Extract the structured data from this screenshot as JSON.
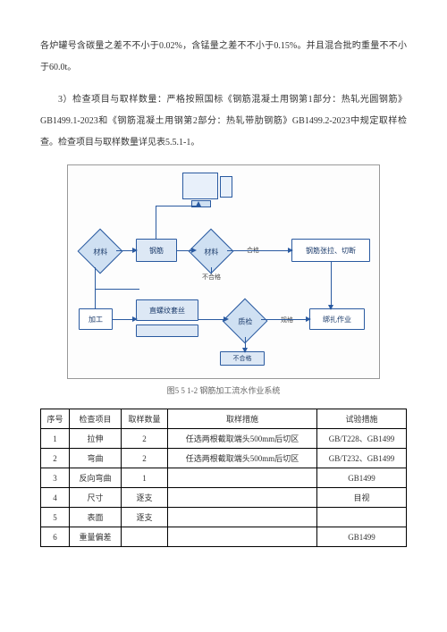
{
  "paragraphs": {
    "p1": "各炉罐号含碳量之差不不小于0.02%，含锰量之差不不小于0.15%。并且混合批旳重量不不小于60.0t。",
    "p2": "3）检查项目与取样数量：严格按照国标《钢筋混凝土用钢第1部分：热轧光圆钢筋》GB1499.1-2023和《钢筋混凝土用钢第2部分：热轧带肋钢筋》GB1499.2-2023中规定取样检查。检查项目与取样数量详见表5.5.1-1。"
  },
  "diagram": {
    "caption": "图5 5 1-2 钢筋加工流水作业系统",
    "nodes": {
      "material1": "材料",
      "steel": "钢筋",
      "material2": "材料",
      "qualified": "合格",
      "process1": "钢筋张拉、切断",
      "machining": "加工",
      "threading": "直螺纹套丝",
      "qc": "质检",
      "spot": "规格",
      "bundling": "绑扎作业",
      "unqual": "不合格"
    }
  },
  "table": {
    "headers": [
      "序号",
      "检查项目",
      "取样数量",
      "取样措施",
      "试验措施"
    ],
    "rows": [
      [
        "1",
        "拉伸",
        "2",
        "任选两根截取端头500mm后切区",
        "GB/T228、GB1499"
      ],
      [
        "2",
        "弯曲",
        "2",
        "任选两根截取端头500mm后切区",
        "GB/T232、GB1499"
      ],
      [
        "3",
        "反向弯曲",
        "1",
        "",
        "GB1499"
      ],
      [
        "4",
        "尺寸",
        "逐支",
        "",
        "目视"
      ],
      [
        "5",
        "表面",
        "逐支",
        "",
        ""
      ],
      [
        "6",
        "重量偏差",
        "",
        "",
        "GB1499"
      ]
    ]
  }
}
